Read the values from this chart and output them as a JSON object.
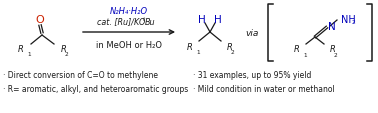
{
  "bg_color": "#ffffff",
  "text_color": "#1a1a1a",
  "blue_color": "#0000bb",
  "red_color": "#cc2200",
  "bullet1": "· Direct conversion of C=O to methylene",
  "bullet2": "· R= aromatic, alkyl, and heteroaromatic groups",
  "bullet3": "· 31 examples, up to 95% yield",
  "bullet4": "· Mild condition in water or methanol",
  "reagent_line1": "N₂H₄·H₂O",
  "reagent_line3": "in MeOH or H₂O",
  "via_text": "via",
  "font_size_reagent": 6.0,
  "font_size_bullet": 5.5,
  "font_size_via": 6.5,
  "font_size_label": 6.0,
  "font_size_atom": 7.5
}
